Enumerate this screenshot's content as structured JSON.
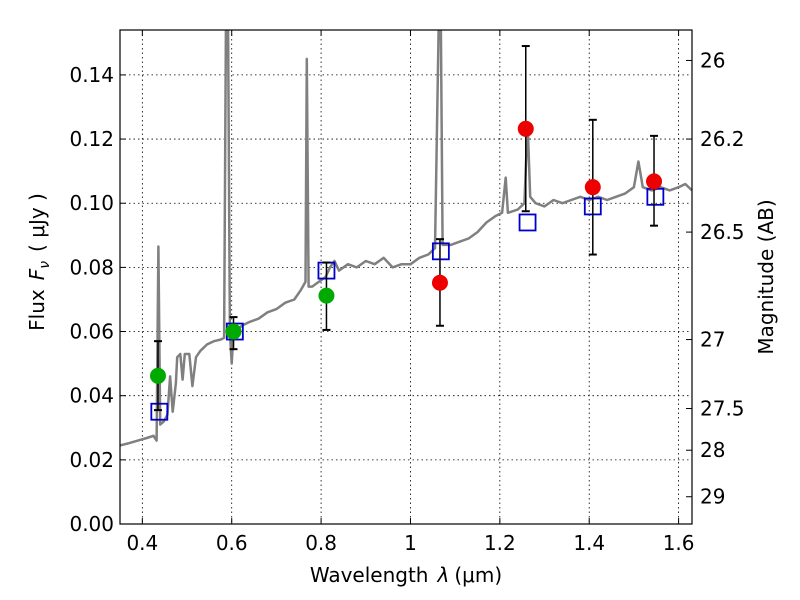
{
  "chart_data": {
    "type": "scatter",
    "xlabel_prefix": "Wavelength",
    "xlabel_symbol": "λ",
    "xlabel_units": "(μm)",
    "ylabel_prefix": "Flux",
    "ylabel_symbol": "F",
    "ylabel_subscript": "ν",
    "ylabel_units": "( μJy )",
    "y2label": "Magnitude (AB)",
    "xlim": [
      0.35,
      1.63
    ],
    "ylim": [
      0.0,
      0.154
    ],
    "grid": true,
    "x_ticks": [
      0.4,
      0.6,
      0.8,
      1.0,
      1.2,
      1.4,
      1.6
    ],
    "x_tick_labels": [
      "0.4",
      "0.6",
      "0.8",
      "1",
      "1.2",
      "1.4",
      "1.6"
    ],
    "y_ticks": [
      0.0,
      0.02,
      0.04,
      0.06,
      0.08,
      0.1,
      0.12,
      0.14
    ],
    "y_tick_labels": [
      "0.00",
      "0.02",
      "0.04",
      "0.06",
      "0.08",
      "0.10",
      "0.12",
      "0.14"
    ],
    "y2_ticks": [
      {
        "flux": 0.1445,
        "label": "26"
      },
      {
        "flux": 0.12,
        "label": "26.2"
      },
      {
        "flux": 0.091,
        "label": "26.5"
      },
      {
        "flux": 0.0575,
        "label": "27"
      },
      {
        "flux": 0.036,
        "label": "27.5"
      },
      {
        "flux": 0.023,
        "label": "28"
      },
      {
        "flux": 0.0085,
        "label": "29"
      }
    ],
    "colors": {
      "model": "#808080",
      "model_band": "#0000cc",
      "observed_green": "#00aa00",
      "observed_red": "#ee0000",
      "errorbar": "#000000"
    },
    "series": [
      {
        "kind": "line",
        "points": [
          [
            0.35,
            0.0245
          ],
          [
            0.37,
            0.0252
          ],
          [
            0.39,
            0.026
          ],
          [
            0.41,
            0.0268
          ],
          [
            0.425,
            0.0275
          ],
          [
            0.432,
            0.026
          ],
          [
            0.436,
            0.0865
          ],
          [
            0.44,
            0.031
          ],
          [
            0.448,
            0.032
          ],
          [
            0.456,
            0.034
          ],
          [
            0.462,
            0.046
          ],
          [
            0.468,
            0.035
          ],
          [
            0.475,
            0.044
          ],
          [
            0.478,
            0.052
          ],
          [
            0.485,
            0.053
          ],
          [
            0.49,
            0.045
          ],
          [
            0.495,
            0.053
          ],
          [
            0.505,
            0.053
          ],
          [
            0.512,
            0.043
          ],
          [
            0.52,
            0.052
          ],
          [
            0.53,
            0.054
          ],
          [
            0.545,
            0.056
          ],
          [
            0.56,
            0.057
          ],
          [
            0.575,
            0.0575
          ],
          [
            0.583,
            0.058
          ],
          [
            0.587,
            0.154
          ],
          [
            0.592,
            0.154
          ],
          [
            0.596,
            0.06
          ],
          [
            0.6,
            0.05
          ],
          [
            0.605,
            0.062
          ],
          [
            0.615,
            0.061
          ],
          [
            0.625,
            0.062
          ],
          [
            0.64,
            0.063
          ],
          [
            0.66,
            0.064
          ],
          [
            0.68,
            0.066
          ],
          [
            0.7,
            0.067
          ],
          [
            0.72,
            0.069
          ],
          [
            0.74,
            0.07
          ],
          [
            0.755,
            0.073
          ],
          [
            0.765,
            0.0755
          ],
          [
            0.768,
            0.145
          ],
          [
            0.772,
            0.074
          ],
          [
            0.78,
            0.074
          ],
          [
            0.79,
            0.075
          ],
          [
            0.81,
            0.077
          ],
          [
            0.82,
            0.08
          ],
          [
            0.83,
            0.082
          ],
          [
            0.84,
            0.079
          ],
          [
            0.86,
            0.081
          ],
          [
            0.88,
            0.08
          ],
          [
            0.9,
            0.082
          ],
          [
            0.92,
            0.081
          ],
          [
            0.94,
            0.083
          ],
          [
            0.96,
            0.08
          ],
          [
            0.98,
            0.081
          ],
          [
            1.0,
            0.081
          ],
          [
            1.02,
            0.083
          ],
          [
            1.04,
            0.084
          ],
          [
            1.055,
            0.086
          ],
          [
            1.063,
            0.154
          ],
          [
            1.068,
            0.154
          ],
          [
            1.072,
            0.087
          ],
          [
            1.09,
            0.087
          ],
          [
            1.11,
            0.088
          ],
          [
            1.13,
            0.089
          ],
          [
            1.15,
            0.091
          ],
          [
            1.17,
            0.094
          ],
          [
            1.19,
            0.096
          ],
          [
            1.205,
            0.097
          ],
          [
            1.213,
            0.108
          ],
          [
            1.218,
            0.097
          ],
          [
            1.24,
            0.098
          ],
          [
            1.255,
            0.1
          ],
          [
            1.262,
            0.125
          ],
          [
            1.268,
            0.102
          ],
          [
            1.28,
            0.1
          ],
          [
            1.3,
            0.099
          ],
          [
            1.32,
            0.101
          ],
          [
            1.34,
            0.1
          ],
          [
            1.36,
            0.101
          ],
          [
            1.38,
            0.102
          ],
          [
            1.4,
            0.101
          ],
          [
            1.42,
            0.102
          ],
          [
            1.44,
            0.101
          ],
          [
            1.46,
            0.102
          ],
          [
            1.48,
            0.103
          ],
          [
            1.5,
            0.105
          ],
          [
            1.51,
            0.113
          ],
          [
            1.52,
            0.105
          ],
          [
            1.54,
            0.104
          ],
          [
            1.56,
            0.105
          ],
          [
            1.58,
            0.104
          ],
          [
            1.6,
            0.105
          ],
          [
            1.615,
            0.106
          ],
          [
            1.63,
            0.104
          ]
        ]
      },
      {
        "kind": "model-band-squares",
        "points": [
          [
            0.438,
            0.035
          ],
          [
            0.607,
            0.06
          ],
          [
            0.812,
            0.079
          ],
          [
            1.068,
            0.085
          ],
          [
            1.262,
            0.094
          ],
          [
            1.408,
            0.099
          ],
          [
            1.548,
            0.102
          ]
        ]
      },
      {
        "kind": "observed-green",
        "points": [
          {
            "x": 0.435,
            "y": 0.0462,
            "err": [
              0.0355,
              0.057
            ]
          },
          {
            "x": 0.604,
            "y": 0.06,
            "err": [
              0.0545,
              0.0645
            ]
          },
          {
            "x": 0.812,
            "y": 0.0712,
            "err": [
              0.0605,
              0.0815
            ]
          }
        ]
      },
      {
        "kind": "observed-red",
        "points": [
          {
            "x": 1.066,
            "y": 0.0752,
            "err": [
              0.0618,
              0.0888
            ]
          },
          {
            "x": 1.258,
            "y": 0.1232,
            "err": [
              0.0975,
              0.149
            ]
          },
          {
            "x": 1.408,
            "y": 0.105,
            "err": [
              0.084,
              0.126
            ]
          },
          {
            "x": 1.545,
            "y": 0.1068,
            "err": [
              0.093,
              0.121
            ]
          }
        ]
      }
    ]
  }
}
